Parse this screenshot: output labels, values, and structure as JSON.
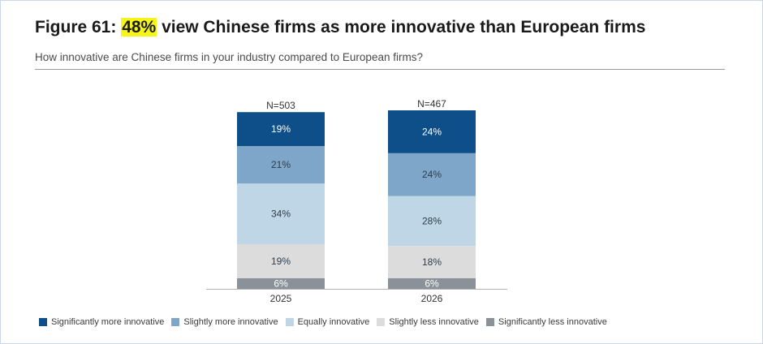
{
  "header": {
    "title_prefix": "Figure 61: ",
    "title_highlight": "48%",
    "title_suffix": " view Chinese firms as more innovative than European firms",
    "subtitle": "How innovative are Chinese firms in your industry compared to European firms?"
  },
  "chart_data": {
    "type": "bar",
    "stacked": true,
    "categories": [
      "2025",
      "2026"
    ],
    "sample_sizes": [
      "N=503",
      "N=467"
    ],
    "series": [
      {
        "name": "Significantly more innovative",
        "values": [
          19,
          24
        ],
        "labels": [
          "19%",
          "24%"
        ],
        "color": "#0e4f8a",
        "label_color": "#ffffff"
      },
      {
        "name": "Slightly more innovative",
        "values": [
          21,
          24
        ],
        "labels": [
          "21%",
          "24%"
        ],
        "color": "#7ea6c8",
        "label_color": "#2f3d4d"
      },
      {
        "name": "Equally innovative",
        "values": [
          34,
          28
        ],
        "labels": [
          "34%",
          "28%"
        ],
        "color": "#bfd6e6",
        "label_color": "#2f3d4d"
      },
      {
        "name": "Slightly less innovative",
        "values": [
          19,
          18
        ],
        "labels": [
          "19%",
          "18%"
        ],
        "color": "#dcdcdc",
        "label_color": "#2f3d4d"
      },
      {
        "name": "Significantly less innovative",
        "values": [
          6,
          6
        ],
        "labels": [
          "6%",
          "6%"
        ],
        "color": "#8a9198",
        "label_color": "#ffffff"
      }
    ],
    "ylim": [
      0,
      100
    ],
    "grid": false,
    "legend": "bottom"
  }
}
